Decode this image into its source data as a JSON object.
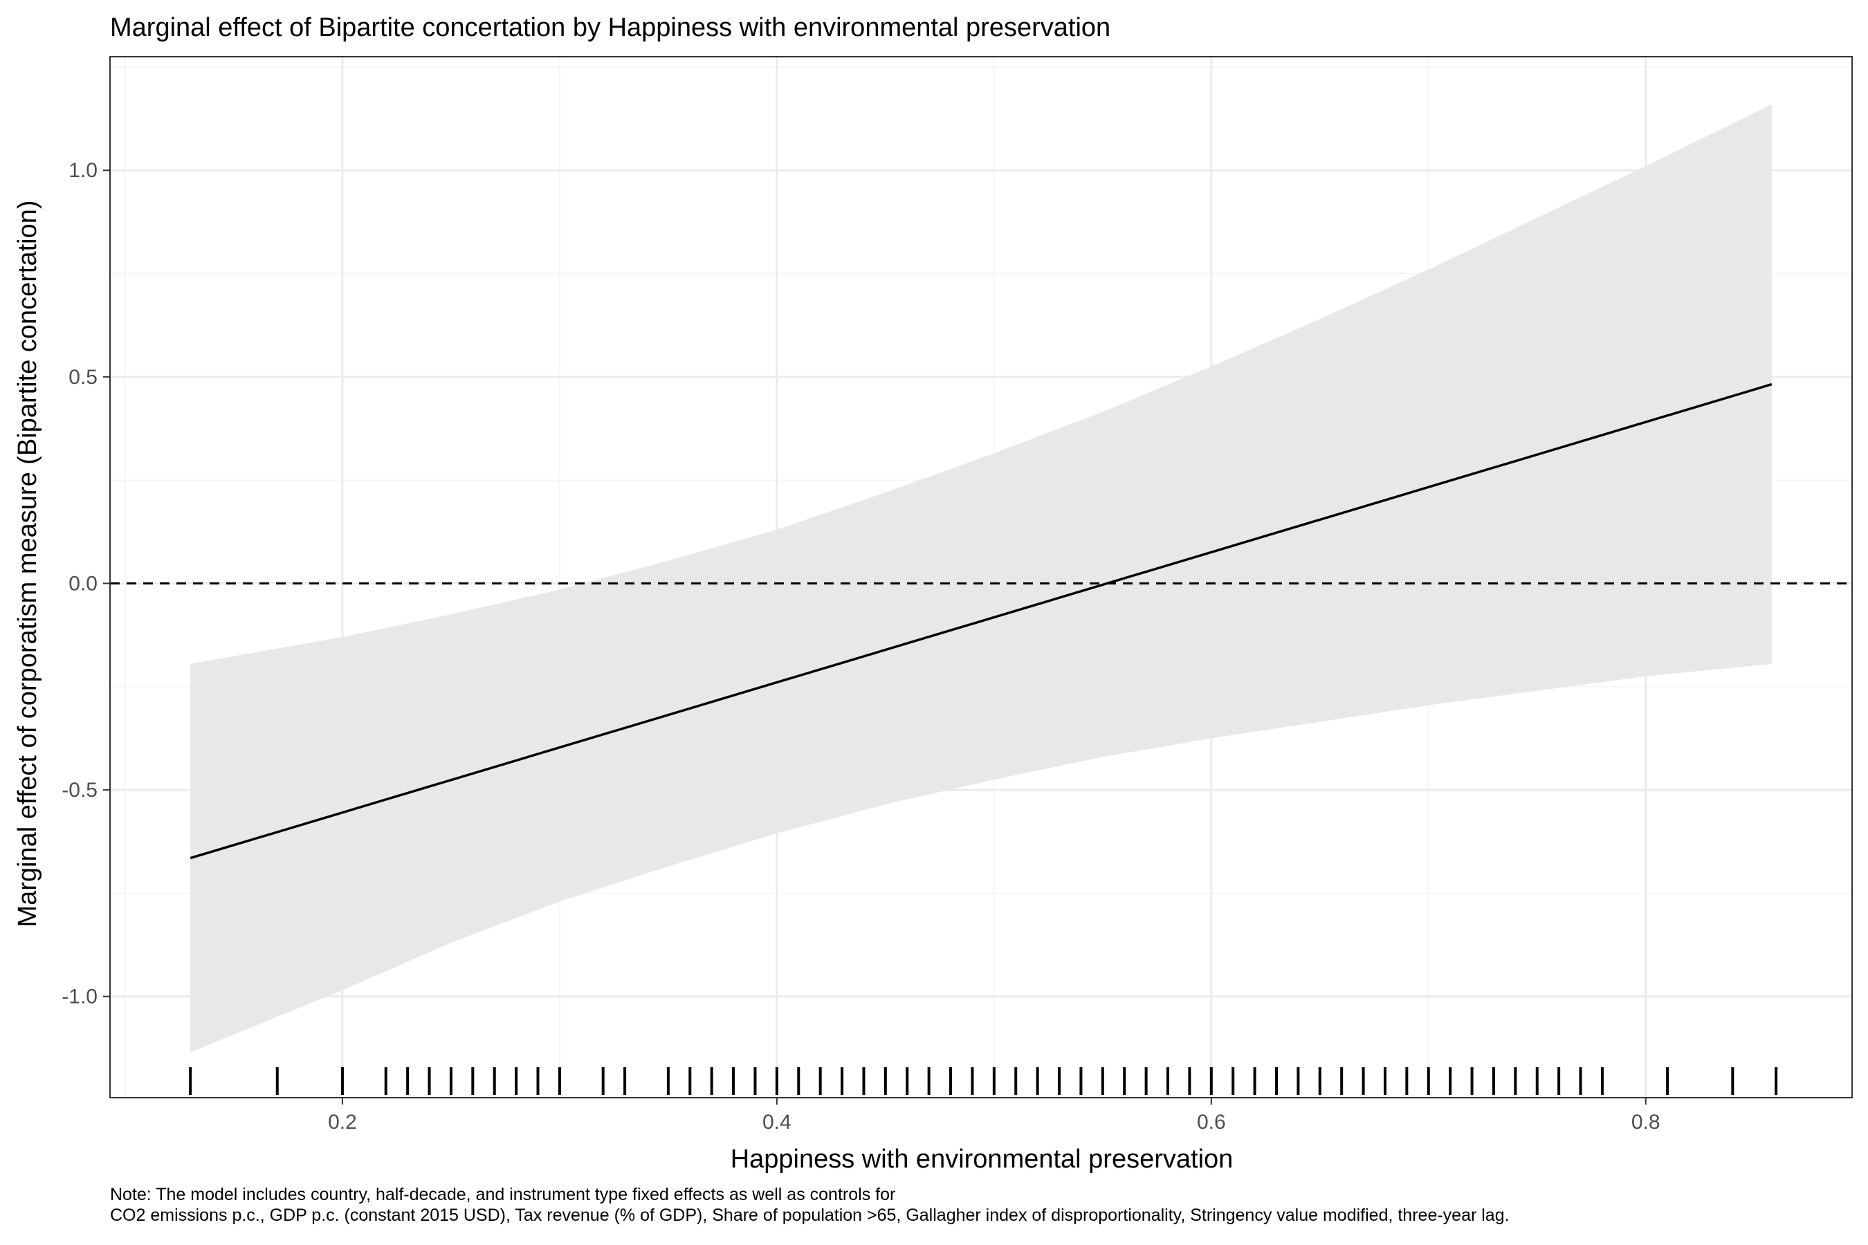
{
  "chart_data": {
    "type": "line",
    "title": "Marginal effect of Bipartite concertation by Happiness with environmental preservation",
    "xlabel": "Happiness with environmental preservation",
    "ylabel": "Marginal effect of corporatism measure (Bipartite concertation)",
    "xlim": [
      0.093,
      0.895
    ],
    "ylim": [
      -1.245,
      1.275
    ],
    "x_ticks": [
      0.2,
      0.4,
      0.6,
      0.8
    ],
    "x_tick_labels": [
      "0.2",
      "0.4",
      "0.6",
      "0.8"
    ],
    "y_ticks": [
      -1.0,
      -0.5,
      0.0,
      0.5,
      1.0
    ],
    "y_tick_labels": [
      "-1.0",
      "-0.5",
      "0.0",
      "0.5",
      "1.0"
    ],
    "reference_line": {
      "y": 0.0,
      "style": "dashed"
    },
    "series": [
      {
        "type": "line",
        "x": [
          0.13,
          0.858
        ],
        "y": [
          -0.665,
          0.482
        ]
      },
      {
        "type": "confidence_band",
        "x": [
          0.13,
          0.2,
          0.25,
          0.3,
          0.35,
          0.4,
          0.45,
          0.5,
          0.55,
          0.6,
          0.65,
          0.7,
          0.75,
          0.8,
          0.858
        ],
        "upper": [
          -0.195,
          -0.13,
          -0.075,
          -0.015,
          0.055,
          0.13,
          0.22,
          0.315,
          0.415,
          0.525,
          0.64,
          0.76,
          0.885,
          1.01,
          1.16
        ],
        "lower": [
          -1.135,
          -0.985,
          -0.87,
          -0.77,
          -0.685,
          -0.605,
          -0.535,
          -0.475,
          -0.42,
          -0.375,
          -0.335,
          -0.295,
          -0.26,
          -0.225,
          -0.195
        ]
      }
    ],
    "rug_x": [
      0.13,
      0.17,
      0.2,
      0.22,
      0.23,
      0.24,
      0.25,
      0.26,
      0.27,
      0.28,
      0.29,
      0.3,
      0.32,
      0.33,
      0.35,
      0.36,
      0.37,
      0.38,
      0.39,
      0.4,
      0.41,
      0.42,
      0.43,
      0.44,
      0.45,
      0.46,
      0.47,
      0.48,
      0.49,
      0.5,
      0.51,
      0.52,
      0.53,
      0.54,
      0.55,
      0.56,
      0.57,
      0.58,
      0.59,
      0.6,
      0.61,
      0.62,
      0.63,
      0.64,
      0.65,
      0.66,
      0.67,
      0.68,
      0.69,
      0.7,
      0.71,
      0.72,
      0.73,
      0.74,
      0.75,
      0.76,
      0.77,
      0.78,
      0.81,
      0.84,
      0.86
    ],
    "grid": true,
    "colors": {
      "line": "#000000",
      "band": "#e8e8e8",
      "grid_major": "#ebebeb",
      "grid_minor": "#f4f4f4",
      "panel_border": "#333333",
      "tick_text": "#4d4d4d"
    }
  },
  "note": {
    "line1": "Note: The model includes country, half-decade, and instrument type fixed effects as well as controls for",
    "line2": "CO2 emissions p.c., GDP p.c. (constant 2015 USD), Tax revenue (% of GDP), Share of population >65, Gallagher index of disproportionality, Stringency value modified, three-year lag."
  }
}
